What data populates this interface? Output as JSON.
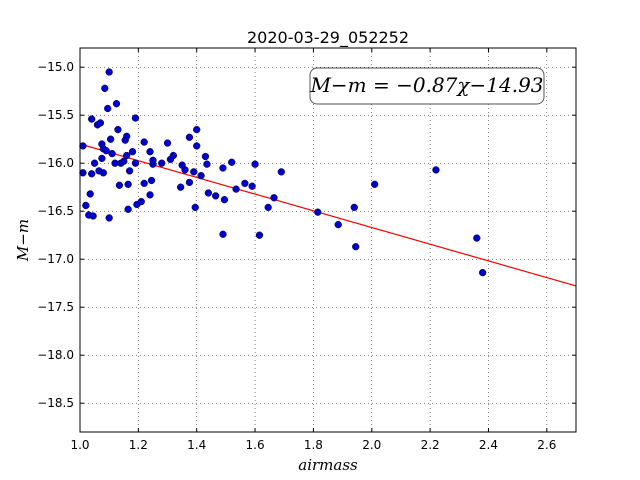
{
  "chart_data": {
    "type": "scatter",
    "title": "2020-03-29_052252",
    "xlabel": "airmass",
    "ylabel": "M−m",
    "xlim": [
      1.0,
      2.7
    ],
    "ylim": [
      -18.8,
      -14.8
    ],
    "xticks": [
      1.0,
      1.2,
      1.4,
      1.6,
      1.8,
      2.0,
      2.2,
      2.4,
      2.6
    ],
    "xtick_labels": [
      "1.0",
      "1.2",
      "1.4",
      "1.6",
      "1.8",
      "2.0",
      "2.2",
      "2.4",
      "2.6"
    ],
    "yticks": [
      -15.0,
      -15.5,
      -16.0,
      -16.5,
      -17.0,
      -17.5,
      -18.0,
      -18.5
    ],
    "ytick_labels": [
      "−15.0",
      "−15.5",
      "−16.0",
      "−16.5",
      "−17.0",
      "−17.5",
      "−18.0",
      "−18.5"
    ],
    "grid": true,
    "annotation": "M−m = −0.87χ−14.93",
    "fit": {
      "slope": -0.87,
      "intercept": -14.93,
      "color": "#ff0000"
    },
    "point_color": "#0000cc",
    "points": [
      [
        1.01,
        -15.82
      ],
      [
        1.01,
        -16.1
      ],
      [
        1.02,
        -16.44
      ],
      [
        1.03,
        -16.54
      ],
      [
        1.035,
        -16.32
      ],
      [
        1.04,
        -15.54
      ],
      [
        1.04,
        -16.11
      ],
      [
        1.045,
        -16.55
      ],
      [
        1.05,
        -16.0
      ],
      [
        1.06,
        -15.6
      ],
      [
        1.065,
        -16.08
      ],
      [
        1.07,
        -15.58
      ],
      [
        1.075,
        -15.8
      ],
      [
        1.075,
        -15.95
      ],
      [
        1.08,
        -15.85
      ],
      [
        1.08,
        -16.1
      ],
      [
        1.085,
        -15.22
      ],
      [
        1.09,
        -15.87
      ],
      [
        1.095,
        -15.43
      ],
      [
        1.1,
        -15.05
      ],
      [
        1.1,
        -16.57
      ],
      [
        1.105,
        -15.75
      ],
      [
        1.11,
        -15.9
      ],
      [
        1.12,
        -16.0
      ],
      [
        1.125,
        -15.38
      ],
      [
        1.13,
        -15.65
      ],
      [
        1.135,
        -16.23
      ],
      [
        1.14,
        -16.0
      ],
      [
        1.15,
        -15.98
      ],
      [
        1.155,
        -15.76
      ],
      [
        1.16,
        -15.72
      ],
      [
        1.16,
        -15.92
      ],
      [
        1.165,
        -16.48
      ],
      [
        1.165,
        -16.22
      ],
      [
        1.17,
        -16.08
      ],
      [
        1.18,
        -15.88
      ],
      [
        1.19,
        -15.53
      ],
      [
        1.19,
        -16.0
      ],
      [
        1.195,
        -16.43
      ],
      [
        1.21,
        -16.4
      ],
      [
        1.22,
        -15.78
      ],
      [
        1.22,
        -16.21
      ],
      [
        1.24,
        -16.33
      ],
      [
        1.24,
        -15.88
      ],
      [
        1.245,
        -16.18
      ],
      [
        1.25,
        -16.01
      ],
      [
        1.25,
        -15.97
      ],
      [
        1.28,
        -16.0
      ],
      [
        1.3,
        -15.79
      ],
      [
        1.31,
        -15.96
      ],
      [
        1.32,
        -15.92
      ],
      [
        1.345,
        -16.25
      ],
      [
        1.35,
        -16.02
      ],
      [
        1.36,
        -16.07
      ],
      [
        1.375,
        -15.73
      ],
      [
        1.375,
        -16.2
      ],
      [
        1.39,
        -16.09
      ],
      [
        1.395,
        -16.46
      ],
      [
        1.4,
        -15.65
      ],
      [
        1.4,
        -15.82
      ],
      [
        1.415,
        -16.13
      ],
      [
        1.43,
        -15.93
      ],
      [
        1.435,
        -16.01
      ],
      [
        1.44,
        -16.31
      ],
      [
        1.465,
        -16.34
      ],
      [
        1.49,
        -16.05
      ],
      [
        1.49,
        -16.74
      ],
      [
        1.495,
        -16.38
      ],
      [
        1.52,
        -15.99
      ],
      [
        1.535,
        -16.27
      ],
      [
        1.565,
        -16.21
      ],
      [
        1.59,
        -16.24
      ],
      [
        1.6,
        -16.01
      ],
      [
        1.615,
        -16.75
      ],
      [
        1.645,
        -16.46
      ],
      [
        1.665,
        -16.36
      ],
      [
        1.69,
        -16.09
      ],
      [
        1.815,
        -16.51
      ],
      [
        1.885,
        -16.64
      ],
      [
        1.94,
        -16.46
      ],
      [
        1.945,
        -16.87
      ],
      [
        2.01,
        -16.22
      ],
      [
        2.22,
        -16.07
      ],
      [
        2.36,
        -16.78
      ],
      [
        2.38,
        -17.14
      ]
    ]
  }
}
